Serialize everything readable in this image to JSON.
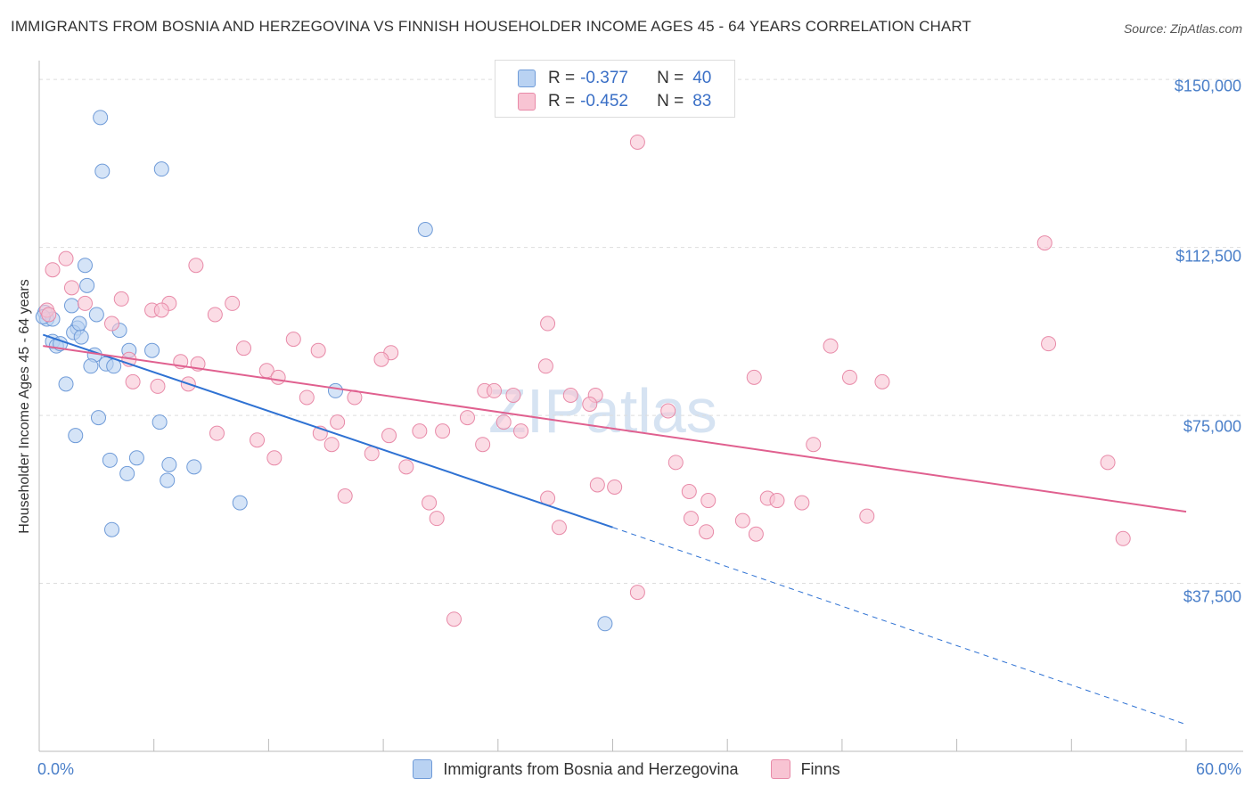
{
  "title": "IMMIGRANTS FROM BOSNIA AND HERZEGOVINA VS FINNISH HOUSEHOLDER INCOME AGES 45 - 64 YEARS CORRELATION CHART",
  "source": "Source: ZipAtlas.com",
  "watermark": {
    "zip": "ZIP",
    "atlas": "atlas"
  },
  "legend": {
    "rows": [
      {
        "r_label": "R =",
        "r_value": "-0.377",
        "n_label": "N =",
        "n_value": "40",
        "fill": "#b9d2f2",
        "stroke": "#6f9bd8"
      },
      {
        "r_label": "R =",
        "r_value": "-0.452",
        "n_label": "N =",
        "n_value": "83",
        "fill": "#f8c4d3",
        "stroke": "#e88aa8"
      }
    ]
  },
  "bottom_legend": [
    {
      "label": "Immigrants from Bosnia and Herzegovina",
      "fill": "#b9d2f2",
      "stroke": "#6f9bd8"
    },
    {
      "label": "Finns",
      "fill": "#f8c4d3",
      "stroke": "#e88aa8"
    }
  ],
  "chart_data": {
    "type": "scatter",
    "title": "IMMIGRANTS FROM BOSNIA AND HERZEGOVINA VS FINNISH HOUSEHOLDER INCOME AGES 45 - 64 YEARS CORRELATION CHART",
    "xlabel": "",
    "ylabel": "Householder Income Ages 45 - 64 years",
    "xlim": [
      0,
      60
    ],
    "ylim": [
      0,
      155000
    ],
    "x_tick_labels": [
      "0.0%",
      "60.0%"
    ],
    "y_ticks": [
      37500,
      75000,
      112500,
      150000
    ],
    "y_tick_labels": [
      "$37,500",
      "$75,000",
      "$112,500",
      "$150,000"
    ],
    "grid": "horizontal dashed",
    "legend_position": "top-center",
    "series": [
      {
        "name": "Immigrants from Bosnia and Herzegovina",
        "color": "#6f9bd8",
        "fill": "#b9d2f2",
        "line_color": "#2f72d3",
        "trend": {
          "x0": 0.2,
          "y0": 93000,
          "x1": 30,
          "y1": 50000,
          "dashed_to_x": 60,
          "dashed_to_y": 6000
        },
        "points": [
          [
            3.2,
            141500
          ],
          [
            3.3,
            129500
          ],
          [
            6.4,
            130000
          ],
          [
            20.2,
            116500
          ],
          [
            2.4,
            108500
          ],
          [
            2.5,
            104000
          ],
          [
            1.7,
            99500
          ],
          [
            0.3,
            98000
          ],
          [
            0.4,
            96500
          ],
          [
            0.7,
            96500
          ],
          [
            2.0,
            94500
          ],
          [
            1.8,
            93500
          ],
          [
            2.2,
            92500
          ],
          [
            4.2,
            94000
          ],
          [
            0.7,
            91500
          ],
          [
            0.9,
            90500
          ],
          [
            1.1,
            91000
          ],
          [
            2.9,
            88500
          ],
          [
            4.7,
            89500
          ],
          [
            5.9,
            89500
          ],
          [
            2.7,
            86000
          ],
          [
            3.5,
            86500
          ],
          [
            3.9,
            86000
          ],
          [
            1.4,
            82000
          ],
          [
            15.5,
            80500
          ],
          [
            3.1,
            74500
          ],
          [
            6.3,
            73500
          ],
          [
            1.9,
            70500
          ],
          [
            3.7,
            65000
          ],
          [
            5.1,
            65500
          ],
          [
            4.6,
            62000
          ],
          [
            6.8,
            64000
          ],
          [
            8.1,
            63500
          ],
          [
            6.7,
            60500
          ],
          [
            10.5,
            55500
          ],
          [
            3.8,
            49500
          ],
          [
            29.6,
            28500
          ],
          [
            0.2,
            97000
          ],
          [
            2.1,
            95500
          ],
          [
            3.0,
            97500
          ]
        ]
      },
      {
        "name": "Finns",
        "color": "#e88aa8",
        "fill": "#f8c4d3",
        "line_color": "#e0608f",
        "trend": {
          "x0": 0.2,
          "y0": 90500,
          "x1": 60,
          "y1": 53500
        },
        "points": [
          [
            31.3,
            136000
          ],
          [
            52.6,
            113500
          ],
          [
            1.4,
            110000
          ],
          [
            0.7,
            107500
          ],
          [
            8.2,
            108500
          ],
          [
            1.7,
            103500
          ],
          [
            4.3,
            101000
          ],
          [
            2.4,
            100000
          ],
          [
            10.1,
            100000
          ],
          [
            6.8,
            100000
          ],
          [
            5.9,
            98500
          ],
          [
            6.4,
            98500
          ],
          [
            9.2,
            97500
          ],
          [
            0.4,
            98500
          ],
          [
            0.5,
            97500
          ],
          [
            3.8,
            95500
          ],
          [
            26.6,
            95500
          ],
          [
            13.3,
            92000
          ],
          [
            52.8,
            91000
          ],
          [
            41.4,
            90500
          ],
          [
            10.7,
            90000
          ],
          [
            14.6,
            89500
          ],
          [
            18.4,
            89000
          ],
          [
            17.9,
            87500
          ],
          [
            7.4,
            87000
          ],
          [
            8.3,
            86500
          ],
          [
            26.5,
            86000
          ],
          [
            4.7,
            87500
          ],
          [
            11.9,
            85000
          ],
          [
            12.5,
            83500
          ],
          [
            37.4,
            83500
          ],
          [
            42.4,
            83500
          ],
          [
            44.1,
            82500
          ],
          [
            4.9,
            82500
          ],
          [
            6.2,
            81500
          ],
          [
            7.8,
            82000
          ],
          [
            23.3,
            80500
          ],
          [
            23.8,
            80500
          ],
          [
            24.8,
            79500
          ],
          [
            14.0,
            79000
          ],
          [
            16.5,
            79000
          ],
          [
            27.8,
            79500
          ],
          [
            29.1,
            79500
          ],
          [
            28.8,
            77500
          ],
          [
            32.9,
            76000
          ],
          [
            15.6,
            73500
          ],
          [
            22.4,
            74500
          ],
          [
            24.3,
            73500
          ],
          [
            9.3,
            71000
          ],
          [
            11.4,
            69500
          ],
          [
            14.7,
            71000
          ],
          [
            18.3,
            70500
          ],
          [
            19.9,
            71500
          ],
          [
            21.1,
            71500
          ],
          [
            25.2,
            71500
          ],
          [
            40.5,
            68500
          ],
          [
            15.3,
            68500
          ],
          [
            23.2,
            68500
          ],
          [
            12.3,
            65500
          ],
          [
            17.4,
            66500
          ],
          [
            19.2,
            63500
          ],
          [
            33.3,
            64500
          ],
          [
            55.9,
            64500
          ],
          [
            29.2,
            59500
          ],
          [
            30.1,
            59000
          ],
          [
            34.0,
            58000
          ],
          [
            26.6,
            56500
          ],
          [
            16.0,
            57000
          ],
          [
            20.4,
            55500
          ],
          [
            35.0,
            56000
          ],
          [
            38.1,
            56500
          ],
          [
            38.6,
            56000
          ],
          [
            39.9,
            55500
          ],
          [
            43.3,
            52500
          ],
          [
            20.8,
            52000
          ],
          [
            34.1,
            52000
          ],
          [
            36.8,
            51500
          ],
          [
            27.2,
            50000
          ],
          [
            34.9,
            49000
          ],
          [
            37.5,
            48500
          ],
          [
            56.7,
            47500
          ],
          [
            31.3,
            35500
          ],
          [
            21.7,
            29500
          ]
        ]
      }
    ]
  }
}
